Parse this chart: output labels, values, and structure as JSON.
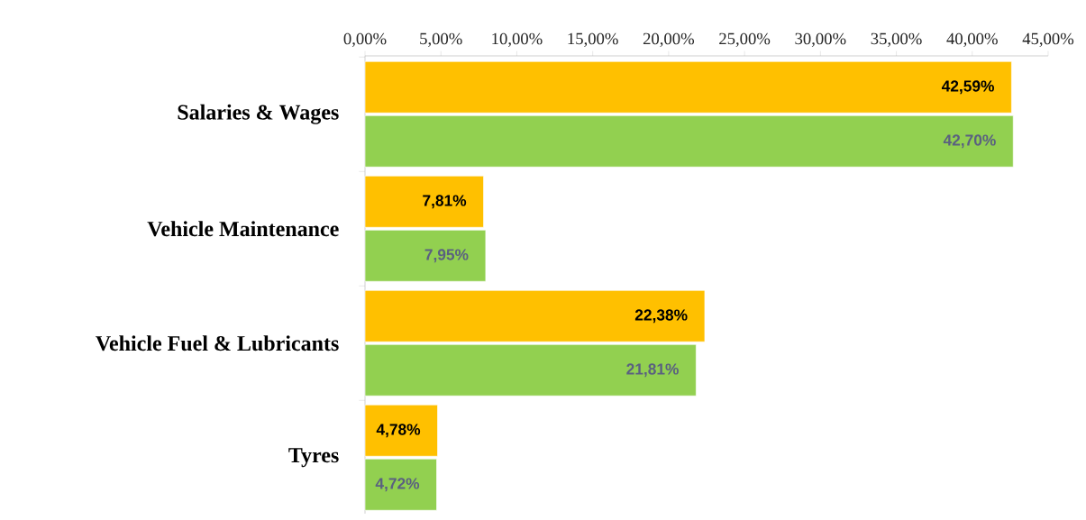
{
  "chart_data": {
    "type": "bar",
    "orientation": "horizontal",
    "categories": [
      "Salaries & Wages",
      "Vehicle Maintenance",
      "Vehicle Fuel & Lubricants",
      "Tyres"
    ],
    "series": [
      {
        "color": "#ffc000",
        "values": [
          42.59,
          7.81,
          22.38,
          4.78
        ],
        "value_labels": [
          "42,59%",
          "7,81%",
          "22,38%",
          "4,78%"
        ]
      },
      {
        "color": "#92d050",
        "values": [
          42.7,
          7.95,
          21.81,
          4.72
        ],
        "value_labels": [
          "42,70%",
          "7,95%",
          "21,81%",
          "4,72%"
        ]
      }
    ],
    "xlim": [
      0,
      45
    ],
    "xticks": [
      {
        "value": 0,
        "label": "0,00%"
      },
      {
        "value": 5,
        "label": "5,00%"
      },
      {
        "value": 10,
        "label": "10,00%"
      },
      {
        "value": 15,
        "label": "15,00%"
      },
      {
        "value": 20,
        "label": "20,00%"
      },
      {
        "value": 25,
        "label": "25,00%"
      },
      {
        "value": 30,
        "label": "30,00%"
      },
      {
        "value": 35,
        "label": "35,00%"
      },
      {
        "value": 40,
        "label": "40,00%"
      },
      {
        "value": 45,
        "label": "45,00%"
      }
    ]
  }
}
